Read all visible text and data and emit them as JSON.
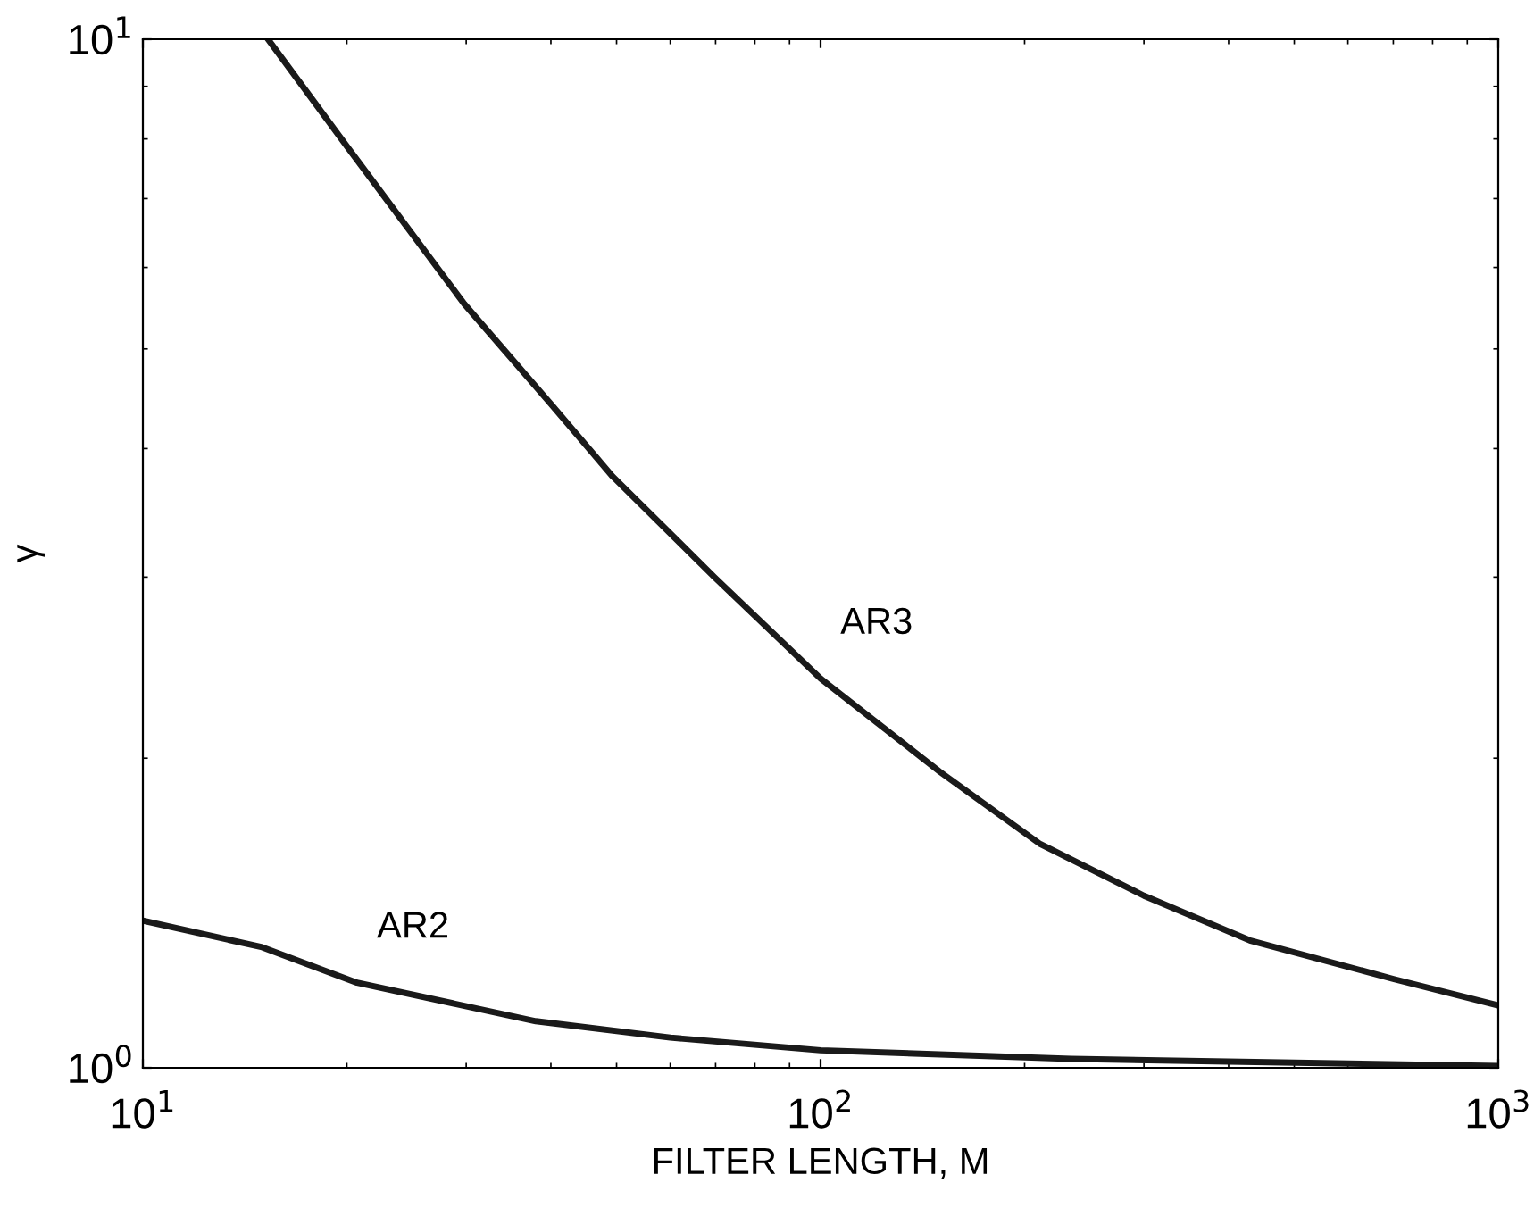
{
  "chart_data": {
    "type": "line",
    "xlabel": "FILTER LENGTH, M",
    "ylabel": "γ",
    "log": "xy",
    "grid": false,
    "marker": "none",
    "line_style": "solid",
    "xlim": [
      10,
      1000
    ],
    "ylim": [
      1,
      10
    ],
    "xticks": [
      {
        "value": 10,
        "label": "10$^{1}$"
      },
      {
        "value": 100,
        "label": "10$^{2}$"
      },
      {
        "value": 1000,
        "label": "10$^{3}$"
      }
    ],
    "yticks": [
      {
        "value": 1,
        "label": "10$^{0}$"
      },
      {
        "value": 10,
        "label": "10$^{1}$"
      }
    ],
    "series": [
      {
        "color": "#1a1a1a",
        "x": [
          15.3,
          20,
          29.8,
          40,
          49.3,
          69.7,
          100,
          150,
          211,
          300,
          430,
          700,
          1000
        ],
        "values": [
          10,
          7.87,
          5.53,
          4.42,
          3.76,
          3.0,
          2.39,
          1.94,
          1.65,
          1.47,
          1.33,
          1.22,
          1.15
        ]
      },
      {
        "color": "#1a1a1a",
        "x": [
          10,
          15,
          20.7,
          38,
          60,
          100,
          234,
          1000
        ],
        "values": [
          1.39,
          1.31,
          1.21,
          1.11,
          1.07,
          1.04,
          1.02,
          1.004
        ]
      }
    ],
    "annotations": [
      {
        "text": "AR3",
        "x": 100,
        "y": 2.39
      },
      {
        "text": "AR2",
        "x": 20.7,
        "y": 1.21
      }
    ]
  }
}
